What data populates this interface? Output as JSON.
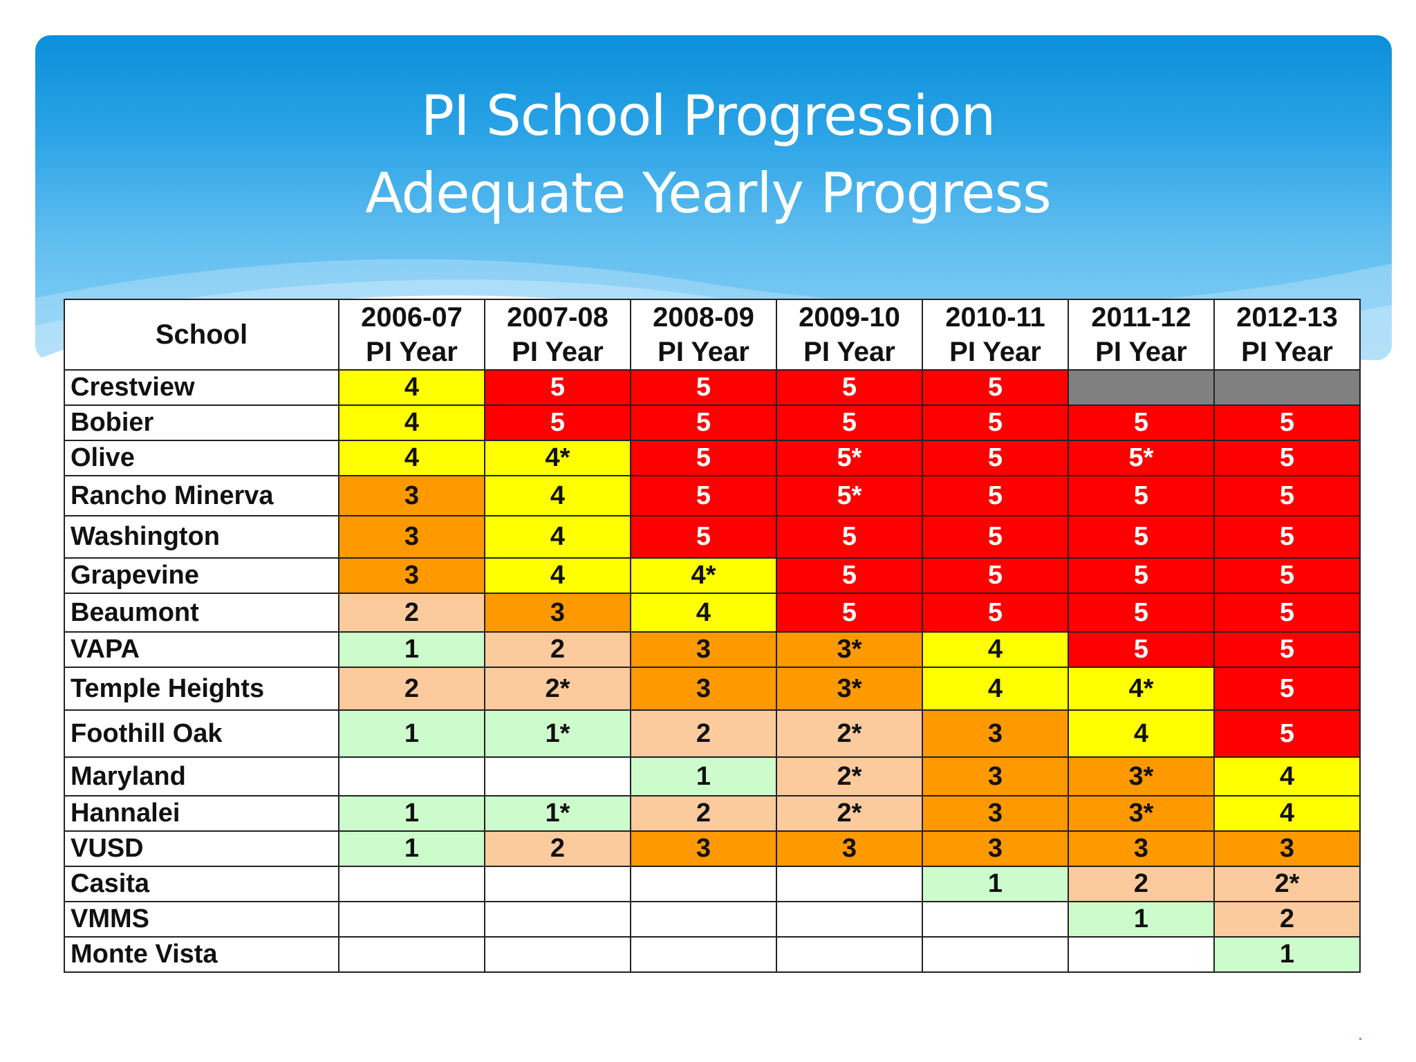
{
  "title": {
    "line1": "PI School Progression",
    "line2": "Adequate Yearly Progress"
  },
  "table": {
    "columns": [
      {
        "label": "School"
      },
      {
        "year": "2006-07",
        "sub": "PI Year"
      },
      {
        "year": "2007-08",
        "sub": "PI Year"
      },
      {
        "year": "2008-09",
        "sub": "PI Year"
      },
      {
        "year": "2009-10",
        "sub": "PI Year"
      },
      {
        "year": "2010-11",
        "sub": "PI Year"
      },
      {
        "year": "2011-12",
        "sub": "PI Year"
      },
      {
        "year": "2012-13",
        "sub": "PI Year"
      }
    ],
    "rows": [
      {
        "school": "Crestview",
        "cells": [
          "4",
          "5",
          "5",
          "5",
          "5",
          "",
          ""
        ]
      },
      {
        "school": "Bobier",
        "cells": [
          "4",
          "5",
          "5",
          "5",
          "5",
          "5",
          "5"
        ]
      },
      {
        "school": "Olive",
        "cells": [
          "4",
          "4*",
          "5",
          "5*",
          "5",
          "5*",
          "5"
        ]
      },
      {
        "school": "Rancho Minerva",
        "cells": [
          "3",
          "4",
          "5",
          "5*",
          "5",
          "5",
          "5"
        ]
      },
      {
        "school": "Washington",
        "cells": [
          "3",
          "4",
          "5",
          "5",
          "5",
          "5",
          "5"
        ]
      },
      {
        "school": "Grapevine",
        "cells": [
          "3",
          "4",
          "4*",
          "5",
          "5",
          "5",
          "5"
        ]
      },
      {
        "school": "Beaumont",
        "cells": [
          "2",
          "3",
          "4",
          "5",
          "5",
          "5",
          "5"
        ]
      },
      {
        "school": "VAPA",
        "cells": [
          "1",
          "2",
          "3",
          "3*",
          "4",
          "5",
          "5"
        ]
      },
      {
        "school": "Temple Heights",
        "cells": [
          "2",
          "2*",
          "3",
          "3*",
          "4",
          "4*",
          "5"
        ]
      },
      {
        "school": "Foothill Oak",
        "cells": [
          "1",
          "1*",
          "2",
          "2*",
          "3",
          "4",
          "5"
        ]
      },
      {
        "school": "Maryland",
        "cells": [
          "",
          "",
          "1",
          "2*",
          "3",
          "3*",
          "4"
        ]
      },
      {
        "school": "Hannalei",
        "cells": [
          "1",
          "1*",
          "2",
          "2*",
          "3",
          "3*",
          "4"
        ]
      },
      {
        "school": "VUSD",
        "cells": [
          "1",
          "2",
          "3",
          "3",
          "3",
          "3",
          "3"
        ]
      },
      {
        "school": "Casita",
        "cells": [
          "",
          "",
          "",
          "",
          "1",
          "2",
          "2*"
        ]
      },
      {
        "school": "VMMS",
        "cells": [
          "",
          "",
          "",
          "",
          "",
          "1",
          "2"
        ]
      },
      {
        "school": "Monte Vista",
        "cells": [
          "",
          "",
          "",
          "",
          "",
          "",
          "1"
        ]
      }
    ],
    "level_colors": {
      "5": "#ff0000",
      "4": "#ffff00",
      "3": "#ff9900",
      "2": "#fbcb9e",
      "1": "#ccfccc",
      "closed": "#808080"
    },
    "gray_cells": [
      [
        0,
        5
      ],
      [
        0,
        6
      ]
    ]
  }
}
